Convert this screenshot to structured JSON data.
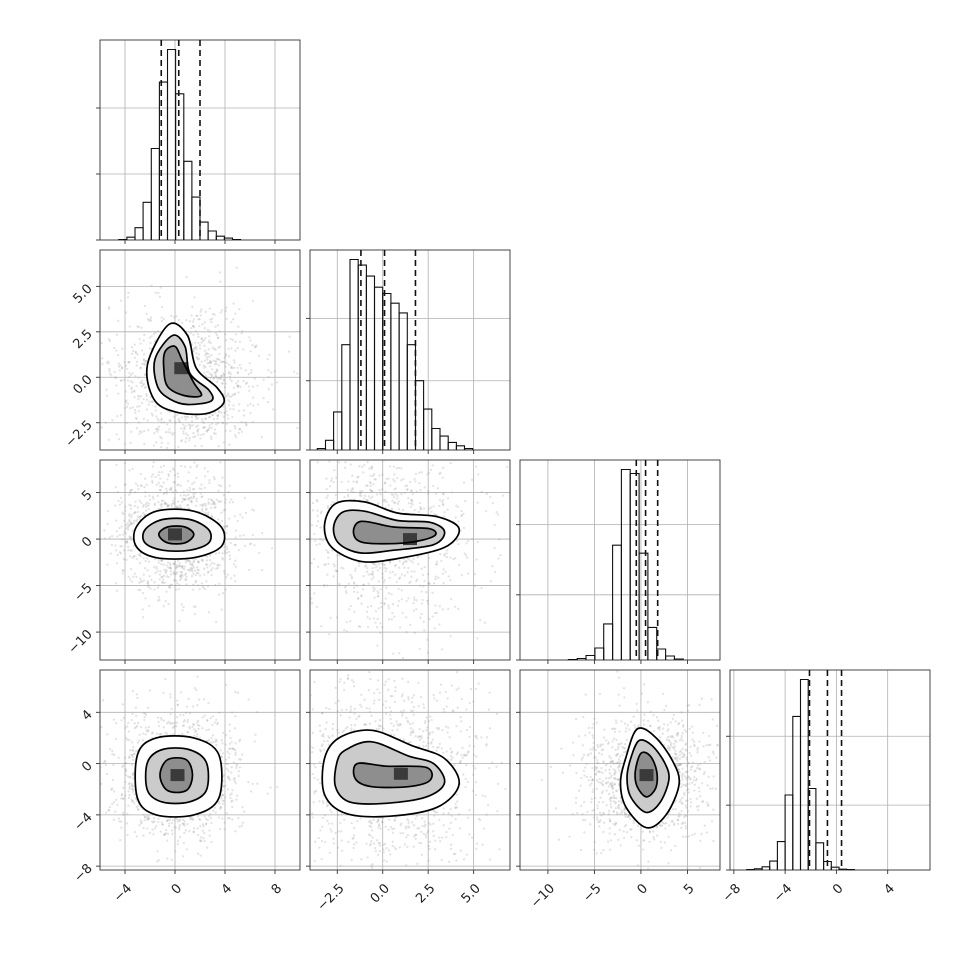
{
  "chart_data": {
    "type": "corner",
    "parameters": 4,
    "grid": true,
    "axes": [
      {
        "range": [
          -6,
          10
        ],
        "ticks": [
          -4,
          0,
          4,
          8
        ],
        "tick_labels": [
          "−4",
          "0",
          "4",
          "8"
        ]
      },
      {
        "range": [
          -4,
          7
        ],
        "ticks": [
          -2.5,
          0.0,
          2.5,
          5.0
        ],
        "tick_labels": [
          "−2.5",
          "0.0",
          "2.5",
          "5.0"
        ]
      },
      {
        "range": [
          -13,
          8.5
        ],
        "ticks": [
          -10,
          -5,
          0,
          5
        ],
        "tick_labels": [
          "−10",
          "−5",
          "0",
          "5"
        ]
      },
      {
        "range": [
          -8.3,
          7.3
        ],
        "ticks": [
          -8,
          -4,
          0,
          4
        ],
        "tick_labels": [
          "−8",
          "−4",
          "0",
          "4"
        ]
      }
    ],
    "marginals": [
      {
        "param": 0,
        "bin_start": -4.5,
        "bin_width": 0.65,
        "counts": [
          1,
          6,
          26,
          80,
          194,
          335,
          404,
          310,
          167,
          91,
          38,
          19,
          8,
          4,
          1
        ],
        "quantiles": [
          -1.1,
          0.3,
          2.0
        ]
      },
      {
        "param": 1,
        "bin_start": -3.6,
        "bin_width": 0.45,
        "counts": [
          2,
          14,
          55,
          152,
          275,
          267,
          251,
          235,
          226,
          212,
          198,
          152,
          100,
          59,
          31,
          20,
          11,
          6,
          2
        ],
        "quantiles": [
          -1.2,
          0.1,
          1.8
        ]
      },
      {
        "param": 2,
        "bin_start": -7.8,
        "bin_width": 0.95,
        "counts": [
          1,
          3,
          9,
          24,
          72,
          229,
          380,
          372,
          213,
          65,
          22,
          8,
          2
        ],
        "quantiles": [
          -0.5,
          0.5,
          1.8
        ]
      },
      {
        "param": 3,
        "bin_start": -7.0,
        "bin_width": 0.6,
        "counts": [
          1,
          3,
          8,
          22,
          70,
          185,
          379,
          470,
          201,
          67,
          21,
          7,
          2,
          1
        ],
        "quantiles": [
          -2.1,
          -0.7,
          0.4
        ]
      }
    ],
    "pairs": [
      {
        "x": 0,
        "y": 1,
        "peak": [
          0.5,
          0.5
        ],
        "levels": [
          [
            [
              -0.5,
              2.9
            ],
            [
              1.0,
              2.3
            ],
            [
              1.7,
              0.5
            ],
            [
              3.4,
              -0.6
            ],
            [
              3.9,
              -1.4
            ],
            [
              2.5,
              -2.0
            ],
            [
              0.0,
              -1.9
            ],
            [
              -1.7,
              -1.2
            ],
            [
              -2.2,
              0.7
            ]
          ],
          [
            [
              -0.2,
              2.3
            ],
            [
              0.8,
              1.7
            ],
            [
              1.2,
              0.2
            ],
            [
              2.7,
              -0.7
            ],
            [
              2.9,
              -1.3
            ],
            [
              1.0,
              -1.5
            ],
            [
              -0.4,
              -1.2
            ],
            [
              -1.4,
              -0.5
            ],
            [
              -1.6,
              1.0
            ]
          ],
          [
            [
              0.0,
              1.7
            ],
            [
              0.6,
              0.9
            ],
            [
              1.5,
              -0.3
            ],
            [
              2.1,
              -1.0
            ],
            [
              0.7,
              -1.0
            ],
            [
              -0.6,
              -0.5
            ],
            [
              -0.9,
              0.5
            ],
            [
              -0.8,
              1.4
            ]
          ]
        ]
      },
      {
        "x": 0,
        "y": 2,
        "peak": [
          0.0,
          0.5
        ],
        "levels": [
          [
            [
              -1.5,
              3.0
            ],
            [
              1.5,
              3.0
            ],
            [
              3.7,
              1.3
            ],
            [
              3.7,
              -0.8
            ],
            [
              1.5,
              -2.0
            ],
            [
              -1.5,
              -2.0
            ],
            [
              -3.1,
              -0.8
            ],
            [
              -3.1,
              1.3
            ]
          ],
          [
            [
              -1.0,
              2.1
            ],
            [
              1.2,
              2.1
            ],
            [
              2.7,
              1.0
            ],
            [
              2.7,
              -0.4
            ],
            [
              1.2,
              -1.2
            ],
            [
              -1.0,
              -1.2
            ],
            [
              -2.4,
              -0.4
            ],
            [
              -2.4,
              1.0
            ]
          ],
          [
            [
              -0.6,
              1.3
            ],
            [
              0.8,
              1.3
            ],
            [
              1.5,
              0.5
            ],
            [
              0.8,
              -0.4
            ],
            [
              -0.6,
              -0.4
            ],
            [
              -1.3,
              0.5
            ]
          ]
        ]
      },
      {
        "x": 1,
        "y": 2,
        "peak": [
          1.5,
          0.0
        ],
        "levels": [
          [
            [
              -2.6,
              3.8
            ],
            [
              -1.0,
              4.0
            ],
            [
              0.8,
              2.8
            ],
            [
              3.0,
              2.4
            ],
            [
              4.2,
              1.1
            ],
            [
              3.4,
              -0.9
            ],
            [
              0.8,
              -2.1
            ],
            [
              -1.2,
              -2.4
            ],
            [
              -2.8,
              -0.9
            ],
            [
              -3.2,
              1.5
            ]
          ],
          [
            [
              -2.2,
              2.9
            ],
            [
              -1.0,
              3.0
            ],
            [
              0.8,
              2.0
            ],
            [
              2.6,
              1.8
            ],
            [
              3.4,
              0.8
            ],
            [
              2.8,
              -0.6
            ],
            [
              0.6,
              -1.2
            ],
            [
              -1.2,
              -1.5
            ],
            [
              -2.4,
              -0.5
            ],
            [
              -2.7,
              1.3
            ]
          ],
          [
            [
              -1.2,
              1.9
            ],
            [
              0.6,
              1.3
            ],
            [
              2.6,
              1.1
            ],
            [
              2.8,
              0.3
            ],
            [
              1.3,
              -0.4
            ],
            [
              -1.0,
              -0.4
            ],
            [
              -1.6,
              0.6
            ]
          ]
        ]
      },
      {
        "x": 0,
        "y": 3,
        "peak": [
          0.2,
          -0.9
        ],
        "levels": [
          [
            [
              -1.5,
              2.0
            ],
            [
              1.5,
              2.0
            ],
            [
              3.5,
              0.7
            ],
            [
              3.5,
              -2.7
            ],
            [
              1.5,
              -4.0
            ],
            [
              -1.5,
              -4.0
            ],
            [
              -3.0,
              -2.7
            ],
            [
              -3.0,
              0.7
            ]
          ],
          [
            [
              -1.0,
              1.1
            ],
            [
              1.1,
              1.1
            ],
            [
              2.5,
              0.1
            ],
            [
              2.5,
              -2.1
            ],
            [
              1.1,
              -3.0
            ],
            [
              -1.0,
              -3.0
            ],
            [
              -2.2,
              -2.1
            ],
            [
              -2.2,
              0.1
            ]
          ],
          [
            [
              -0.6,
              0.3
            ],
            [
              0.9,
              0.3
            ],
            [
              1.4,
              -0.9
            ],
            [
              0.9,
              -2.1
            ],
            [
              -0.6,
              -2.1
            ],
            [
              -1.2,
              -0.9
            ]
          ]
        ]
      },
      {
        "x": 1,
        "y": 3,
        "peak": [
          1.0,
          -0.8
        ],
        "levels": [
          [
            [
              -2.4,
              2.0
            ],
            [
              -0.6,
              2.6
            ],
            [
              1.6,
              1.4
            ],
            [
              3.4,
              0.4
            ],
            [
              4.2,
              -1.6
            ],
            [
              3.0,
              -3.4
            ],
            [
              0.4,
              -4.1
            ],
            [
              -2.0,
              -3.9
            ],
            [
              -3.2,
              -2.4
            ],
            [
              -3.2,
              0.4
            ]
          ],
          [
            [
              -2.0,
              1.1
            ],
            [
              -0.6,
              1.7
            ],
            [
              1.4,
              0.6
            ],
            [
              2.8,
              0.0
            ],
            [
              3.4,
              -1.5
            ],
            [
              2.4,
              -2.6
            ],
            [
              0.2,
              -3.1
            ],
            [
              -1.8,
              -3.0
            ],
            [
              -2.6,
              -1.8
            ],
            [
              -2.5,
              0.2
            ]
          ],
          [
            [
              -1.4,
              0.0
            ],
            [
              0.2,
              -0.2
            ],
            [
              2.4,
              -0.3
            ],
            [
              2.6,
              -1.3
            ],
            [
              1.4,
              -1.8
            ],
            [
              -0.6,
              -1.8
            ],
            [
              -1.5,
              -1.2
            ]
          ]
        ]
      },
      {
        "x": 2,
        "y": 3,
        "peak": [
          0.6,
          -0.9
        ],
        "levels": [
          [
            [
              -0.4,
              2.7
            ],
            [
              1.5,
              2.1
            ],
            [
              3.4,
              0.2
            ],
            [
              4.1,
              -1.6
            ],
            [
              2.7,
              -4.0
            ],
            [
              0.6,
              -5.0
            ],
            [
              -1.6,
              -3.4
            ],
            [
              -2.2,
              -1.5
            ],
            [
              -1.6,
              0.5
            ]
          ],
          [
            [
              -0.2,
              1.8
            ],
            [
              1.2,
              1.4
            ],
            [
              2.6,
              0.0
            ],
            [
              3.0,
              -1.3
            ],
            [
              2.0,
              -3.1
            ],
            [
              0.5,
              -3.8
            ],
            [
              -1.1,
              -2.6
            ],
            [
              -1.5,
              -1.1
            ],
            [
              -1.1,
              0.4
            ]
          ],
          [
            [
              0.0,
              0.8
            ],
            [
              1.0,
              0.6
            ],
            [
              1.7,
              -0.6
            ],
            [
              1.6,
              -1.9
            ],
            [
              0.6,
              -2.6
            ],
            [
              -0.4,
              -1.8
            ],
            [
              -0.6,
              -0.6
            ]
          ]
        ]
      }
    ]
  }
}
